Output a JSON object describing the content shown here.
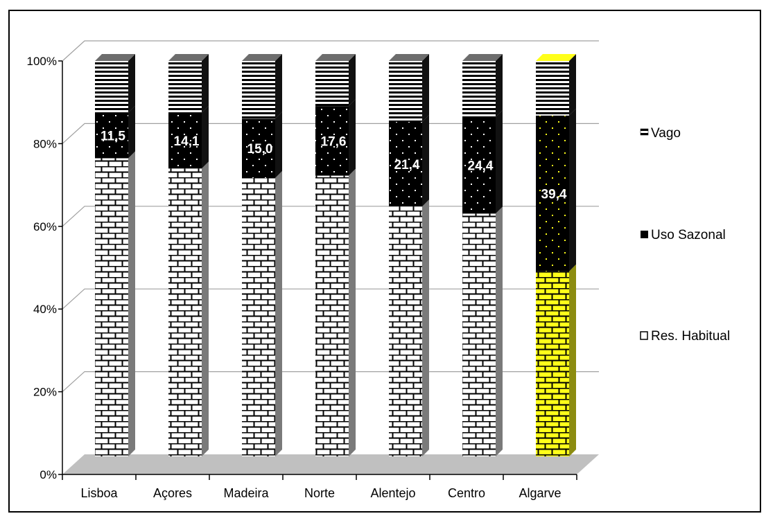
{
  "chart_data": {
    "type": "bar",
    "stacked": true,
    "percent": true,
    "three_d": true,
    "categories": [
      "Lisboa",
      "Açores",
      "Madeira",
      "Norte",
      "Alentejo",
      "Centro",
      "Algarve"
    ],
    "series": [
      {
        "name": "Res. Habitual",
        "values": [
          75.4,
          72.8,
          70.4,
          71.0,
          63.2,
          61.4,
          46.8
        ],
        "color": "#ffffff",
        "highlight_color": "#ffff1a"
      },
      {
        "name": "Uso Sazonal",
        "values": [
          11.5,
          14.1,
          15.0,
          17.6,
          21.4,
          24.4,
          39.4
        ],
        "color": "#000000",
        "dot_color": "#ffffff",
        "highlight_dot_color": "#ffff1a"
      },
      {
        "name": "Vago",
        "values": [
          13.1,
          13.1,
          14.6,
          11.4,
          15.4,
          14.2,
          13.8
        ],
        "color": "#000000"
      }
    ],
    "data_labels": [
      "11,5",
      "14,1",
      "15,0",
      "17,6",
      "21,4",
      "24,4",
      "39,4"
    ],
    "highlight_category": "Algarve",
    "y_ticks": [
      "0%",
      "20%",
      "40%",
      "60%",
      "80%",
      "100%"
    ],
    "ylim": [
      0,
      100
    ],
    "grid": true,
    "legend_position": "right",
    "legend_entries": [
      "Vago",
      "Uso Sazonal",
      "Res. Habitual"
    ]
  }
}
